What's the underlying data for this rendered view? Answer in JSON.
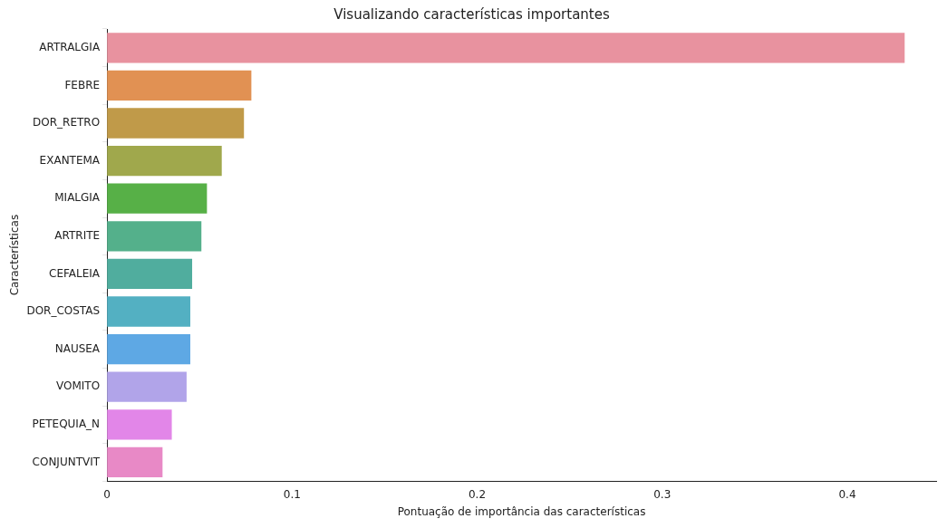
{
  "chart_data": {
    "type": "bar",
    "orientation": "horizontal",
    "title": "Visualizando características importantes",
    "xlabel": "Pontuação de importância das características",
    "ylabel": "Características",
    "categories": [
      "ARTRALGIA",
      "FEBRE",
      "DOR_RETRO",
      "EXANTEMA",
      "MIALGIA",
      "ARTRITE",
      "CEFALEIA",
      "DOR_COSTAS",
      "NAUSEA",
      "VOMITO",
      "PETEQUIA_N",
      "CONJUNTVIT"
    ],
    "values": [
      0.431,
      0.078,
      0.074,
      0.062,
      0.054,
      0.051,
      0.046,
      0.045,
      0.045,
      0.043,
      0.035,
      0.03
    ],
    "colors": [
      "#e8929f",
      "#e19153",
      "#c09a49",
      "#a0a84c",
      "#57b047",
      "#54b08b",
      "#50ad9e",
      "#53b0c2",
      "#5ea8e4",
      "#b1a4e9",
      "#e286e8",
      "#e889c6"
    ],
    "xlim": [
      0,
      0.448
    ],
    "xticks": [
      0,
      0.1,
      0.2,
      0.3,
      0.4
    ],
    "grid": false,
    "legend": false
  }
}
